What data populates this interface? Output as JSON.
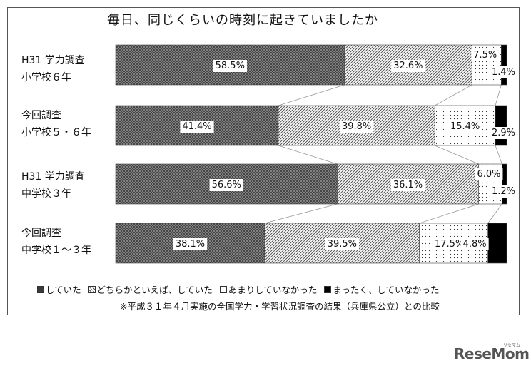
{
  "chart_data": {
    "type": "bar",
    "orientation": "horizontal-stacked-100",
    "title": "毎日、同じくらいの時刻に起きていましたか",
    "categories": [
      [
        "H31 学力調査",
        "小学校６年"
      ],
      [
        "今回調査",
        "小学校５・６年"
      ],
      [
        "H31 学力調査",
        "中学校３年"
      ],
      [
        "今回調査",
        "中学校１～３年"
      ]
    ],
    "series": [
      {
        "name": "していた",
        "values": [
          58.5,
          41.4,
          56.6,
          38.1
        ],
        "labels": [
          "58.5%",
          "41.4%",
          "56.6%",
          "38.1%"
        ],
        "pattern": "crosshatch-dark"
      },
      {
        "name": "どちらかといえば、していた",
        "values": [
          32.6,
          39.8,
          36.1,
          39.5
        ],
        "labels": [
          "32.6%",
          "39.8%",
          "36.1%",
          "39.5%"
        ],
        "pattern": "diagonal"
      },
      {
        "name": "あまりしていなかった",
        "values": [
          7.5,
          15.4,
          6.0,
          17.5
        ],
        "labels": [
          "7.5%",
          "15.4%",
          "6.0%",
          "17.5%"
        ],
        "pattern": "dots"
      },
      {
        "name": "まったく、していなかった",
        "values": [
          1.4,
          2.9,
          1.2,
          4.8
        ],
        "labels": [
          "1.4%",
          "2.9%",
          "1.2%",
          "4.8%"
        ],
        "pattern": "solid-black"
      }
    ],
    "xlim": [
      0,
      100
    ],
    "legend": "bottom",
    "grid": false,
    "connector_lines": true
  },
  "note": "※平成３１年４月実施の全国学力・学習状況調査の結果（兵庫県公立）との比較",
  "brand": {
    "name": "ReseMom",
    "sub": "リセマム"
  }
}
